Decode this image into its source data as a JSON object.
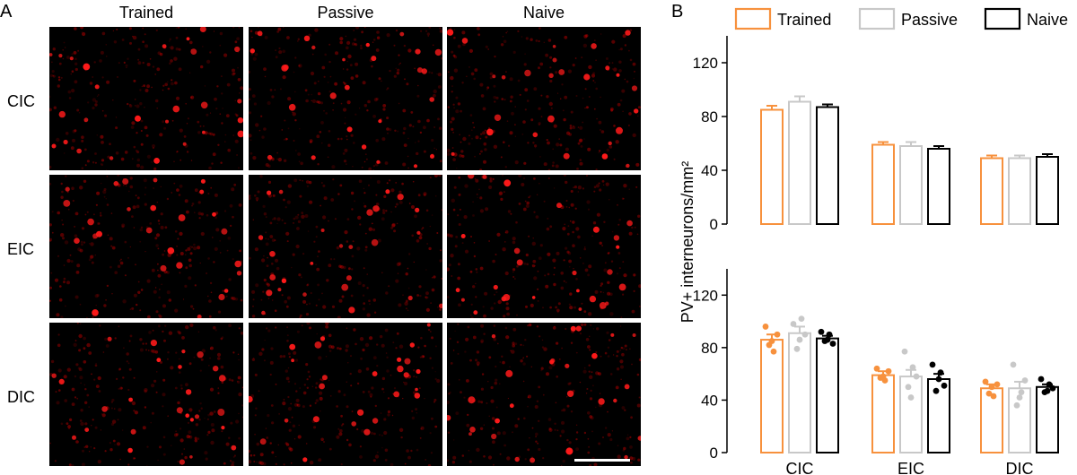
{
  "panels": {
    "a_label": "A",
    "b_label": "B"
  },
  "micrographs": {
    "columns": [
      "Trained",
      "Passive",
      "Naive"
    ],
    "rows": [
      "CIC",
      "EIC",
      "DIC"
    ],
    "stain_color": "#e00000",
    "background": "#000000"
  },
  "colors": {
    "Trained": "#f7913d",
    "Passive": "#c8c8c8",
    "Naive": "#000000"
  },
  "chart_data": [
    {
      "type": "bar",
      "panel": "top",
      "categories": [
        "CIC",
        "EIC",
        "DIC"
      ],
      "series": [
        {
          "name": "Trained",
          "values": [
            85,
            59,
            49
          ],
          "sem": [
            3,
            2,
            2
          ]
        },
        {
          "name": "Passive",
          "values": [
            91,
            58,
            49
          ],
          "sem": [
            4,
            3,
            2
          ]
        },
        {
          "name": "Naive",
          "values": [
            87,
            56,
            50
          ],
          "sem": [
            2,
            2,
            2
          ]
        }
      ],
      "ylim": [
        0,
        140
      ],
      "yticks": [
        0,
        40,
        80,
        120
      ],
      "ylabel": "PV+ interneurons/mm²",
      "legend_position": "top"
    },
    {
      "type": "bar",
      "panel": "bottom",
      "categories": [
        "CIC",
        "EIC",
        "DIC"
      ],
      "series": [
        {
          "name": "Trained",
          "values": [
            86,
            59,
            49
          ],
          "sem": [
            4,
            3,
            3
          ],
          "points": [
            [
              96,
              82,
              77,
              90,
              85
            ],
            [
              64,
              57,
              55,
              62,
              58
            ],
            [
              54,
              45,
              43,
              52,
              50
            ]
          ]
        },
        {
          "name": "Passive",
          "values": [
            91,
            58,
            49
          ],
          "sem": [
            5,
            5,
            5
          ],
          "points": [
            [
              98,
              79,
              102,
              90,
              86
            ],
            [
              77,
              50,
              65,
              58,
              42
            ],
            [
              67,
              36,
              46,
              55,
              42
            ]
          ]
        },
        {
          "name": "Naive",
          "values": [
            87,
            56,
            50
          ],
          "sem": [
            2,
            4,
            2
          ],
          "points": [
            [
              92,
              85,
              90,
              83,
              86
            ],
            [
              67,
              47,
              61,
              51,
              56
            ],
            [
              56,
              46,
              52,
              49,
              47
            ]
          ]
        }
      ],
      "ylim": [
        0,
        140
      ],
      "yticks": [
        0,
        40,
        80,
        120
      ],
      "xlabels": [
        "CIC",
        "EIC",
        "DIC"
      ]
    }
  ]
}
